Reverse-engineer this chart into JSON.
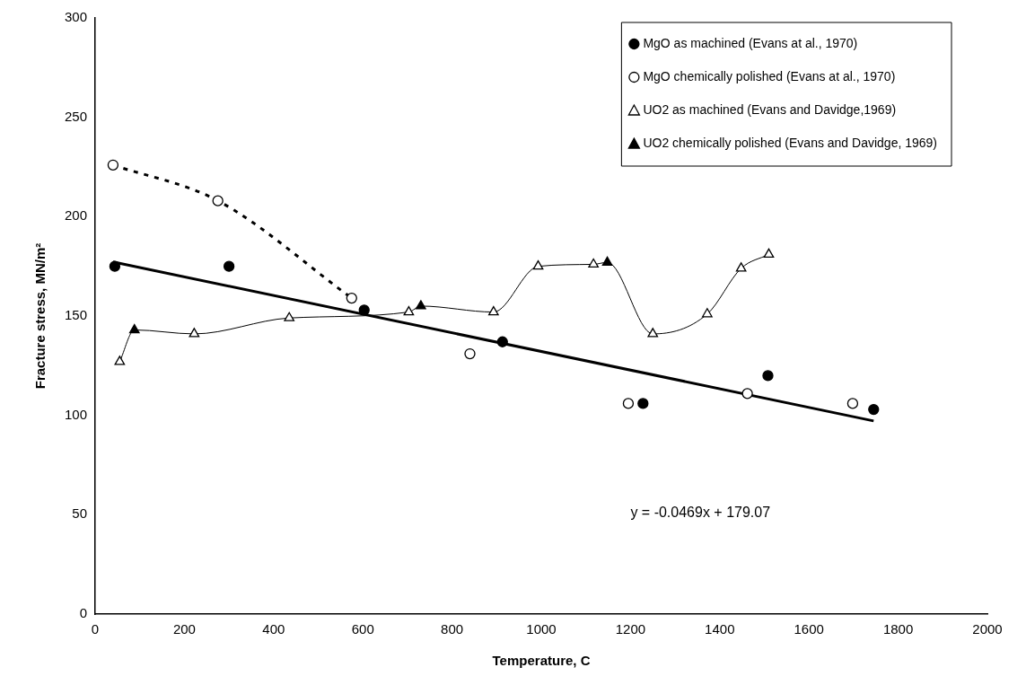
{
  "chart_data": {
    "type": "scatter",
    "xlabel": "Temperature, C",
    "ylabel": "Fracture stress, MN/m²",
    "xlim": [
      0,
      2000
    ],
    "xticks": [
      0,
      200,
      400,
      600,
      800,
      1000,
      1200,
      1400,
      1600,
      1800,
      2000
    ],
    "ylim": [
      0,
      300
    ],
    "yticks": [
      0,
      50,
      100,
      150,
      200,
      250,
      300
    ],
    "grid": false,
    "legend": "top right",
    "annotations": [
      "y = -0.0469x + 179.07"
    ],
    "series": [
      {
        "name": "MgO as machined (Evans at al., 1970)",
        "marker": "circle",
        "color": "#000000",
        "x": [
          44,
          300,
          603,
          913,
          1228,
          1508,
          1745
        ],
        "values": [
          175,
          175,
          153,
          137,
          106,
          120,
          103
        ]
      },
      {
        "name": "MgO chemically polished (Evans at al., 1970)",
        "marker": "circle",
        "color": "#ffffff",
        "x": [
          40,
          275,
          575,
          840,
          1195,
          1462,
          1698
        ],
        "values": [
          226,
          208,
          159,
          131,
          106,
          111,
          106
        ]
      },
      {
        "name": "UO2 as machined (Evans and Davidge,1969)",
        "marker": "triangle",
        "color": "#ffffff",
        "x": [
          55,
          222,
          435,
          703,
          893,
          993,
          1117,
          1250,
          1372,
          1448,
          1510
        ],
        "values": [
          127,
          141,
          149,
          152,
          152,
          175,
          176,
          141,
          151,
          174,
          181
        ]
      },
      {
        "name": "UO2 chemically polished (Evans and Davidge, 1969)",
        "marker": "triangle",
        "color": "#000000",
        "x": [
          88,
          730,
          1148
        ],
        "values": [
          143,
          155,
          177
        ]
      },
      {
        "type": "line",
        "marker": "none",
        "line_style": "solid",
        "color": "#000000",
        "x": [
          40,
          1745
        ],
        "values": [
          177.2,
          97.2
        ]
      },
      {
        "type": "line",
        "marker": "none",
        "line_style": "dotted",
        "color": "#000000",
        "x": [
          40,
          275,
          575
        ],
        "values": [
          226,
          208,
          159
        ]
      },
      {
        "type": "line",
        "marker": "none",
        "line_style": "solid",
        "color": "#000000",
        "x": [
          55,
          88,
          222,
          435,
          703,
          730,
          893,
          993,
          1117,
          1148,
          1250,
          1372,
          1448,
          1510
        ],
        "values": [
          127,
          143,
          141,
          149,
          152,
          155,
          152,
          175,
          176,
          177,
          141,
          151,
          174,
          181
        ]
      }
    ]
  }
}
